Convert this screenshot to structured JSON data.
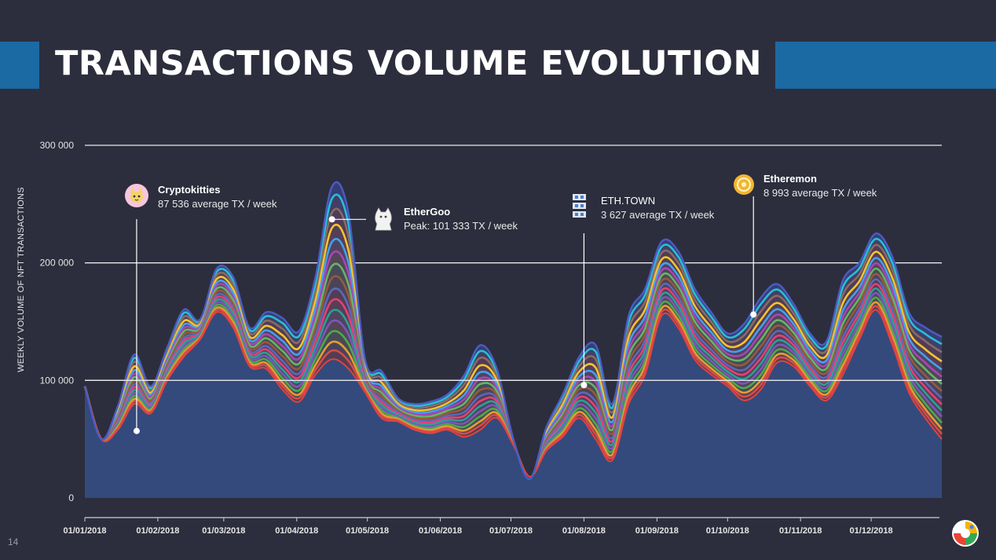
{
  "title": "TRANSACTIONS VOLUME EVOLUTION",
  "page_number": "14",
  "colors": {
    "background": "#2c2e3d",
    "banner": "#1b6aa4",
    "base_area": "#344a7c",
    "series_palette": [
      "#e24a4a",
      "#f0a030",
      "#4caf50",
      "#7e57c2",
      "#26a69a",
      "#ec407a",
      "#5c6bc0",
      "#9c5b3c",
      "#66bb6a",
      "#ab47bc",
      "#42a5f5",
      "#ffca28",
      "#8d6e63",
      "#26c6da"
    ]
  },
  "annotations": [
    {
      "name": "Cryptokitties",
      "stat": "87 536 average TX / week",
      "icon": "cat-icon"
    },
    {
      "name": "EtherGoo",
      "stat_label": "Peak:",
      "stat": " 101 333 TX / week",
      "icon": "goo-icon"
    },
    {
      "name": "ETH.TOWN",
      "stat": "3 627 average TX / week",
      "icon": "buildings-icon"
    },
    {
      "name": "Etheremon",
      "stat": "8 993 average TX / week",
      "icon": "coin-icon"
    }
  ],
  "chart_data": {
    "type": "area",
    "title": "",
    "xlabel": "",
    "ylabel": "WEEKLY VOLUME OF NFT TRANSACTIONS",
    "ylim": [
      0,
      300000
    ],
    "yticks": [
      0,
      100000,
      200000,
      300000
    ],
    "ytick_labels": [
      "0",
      "100 000",
      "200 000",
      "300 000"
    ],
    "xlim": [
      "2018-01-01",
      "2018-12-31"
    ],
    "xtick_labels": [
      "01/01/2018",
      "01/02/2018",
      "01/03/2018",
      "01/04/2018",
      "01/05/2018",
      "01/06/2018",
      "01/07/2018",
      "01/08/2018",
      "01/09/2018",
      "01/10/2018",
      "01/11/2018",
      "01/12/2018"
    ],
    "grid": true,
    "legend": "none",
    "x": [
      "2018-01-01",
      "2018-01-08",
      "2018-01-15",
      "2018-01-22",
      "2018-01-29",
      "2018-02-05",
      "2018-02-12",
      "2018-02-19",
      "2018-02-26",
      "2018-03-05",
      "2018-03-12",
      "2018-03-19",
      "2018-03-26",
      "2018-04-02",
      "2018-04-09",
      "2018-04-16",
      "2018-04-23",
      "2018-04-30",
      "2018-05-07",
      "2018-05-14",
      "2018-05-21",
      "2018-05-28",
      "2018-06-04",
      "2018-06-11",
      "2018-06-18",
      "2018-06-25",
      "2018-07-02",
      "2018-07-09",
      "2018-07-16",
      "2018-07-23",
      "2018-07-30",
      "2018-08-06",
      "2018-08-13",
      "2018-08-20",
      "2018-08-27",
      "2018-09-03",
      "2018-09-10",
      "2018-09-17",
      "2018-09-24",
      "2018-10-01",
      "2018-10-08",
      "2018-10-15",
      "2018-10-22",
      "2018-10-29",
      "2018-11-05",
      "2018-11-12",
      "2018-11-19",
      "2018-11-26",
      "2018-12-03",
      "2018-12-10",
      "2018-12-17",
      "2018-12-24",
      "2018-12-31"
    ],
    "base_series": {
      "name": "Cryptokitties",
      "values": [
        95000,
        50000,
        58000,
        80000,
        72000,
        100000,
        120000,
        135000,
        158000,
        145000,
        112000,
        110000,
        92000,
        82000,
        105000,
        118000,
        110000,
        90000,
        68000,
        65000,
        58000,
        55000,
        58000,
        52000,
        58000,
        68000,
        45000,
        18000,
        40000,
        52000,
        68000,
        50000,
        32000,
        80000,
        105000,
        155000,
        145000,
        118000,
        105000,
        95000,
        83000,
        92000,
        115000,
        112000,
        95000,
        83000,
        105000,
        135000,
        160000,
        130000,
        90000,
        68000,
        50000
      ]
    },
    "total_series": {
      "name": "Total",
      "values": [
        95000,
        50000,
        78000,
        122000,
        95000,
        128000,
        160000,
        152000,
        195000,
        188000,
        145000,
        158000,
        153000,
        142000,
        188000,
        265000,
        242000,
        118000,
        108000,
        85000,
        80000,
        82000,
        88000,
        104000,
        130000,
        110000,
        50000,
        16000,
        60000,
        88000,
        120000,
        130000,
        80000,
        155000,
        178000,
        218000,
        210000,
        178000,
        158000,
        140000,
        148000,
        170000,
        182000,
        165000,
        140000,
        133000,
        185000,
        200000,
        225000,
        205000,
        158000,
        145000,
        137000
      ]
    },
    "layer_fractions": [
      0.05,
      0.1,
      0.16,
      0.22,
      0.28,
      0.34,
      0.4,
      0.47,
      0.54,
      0.61,
      0.68,
      0.76,
      0.85,
      0.93
    ],
    "annotation_points": [
      {
        "series": "Cryptokitties",
        "x": "2018-01-23",
        "y": 57000
      },
      {
        "series": "EtherGoo",
        "x": "2018-04-16",
        "y": 237000
      },
      {
        "series": "ETH.TOWN",
        "x": "2018-08-01",
        "y": 96000
      },
      {
        "series": "Etheremon",
        "x": "2018-10-12",
        "y": 156000
      }
    ]
  }
}
